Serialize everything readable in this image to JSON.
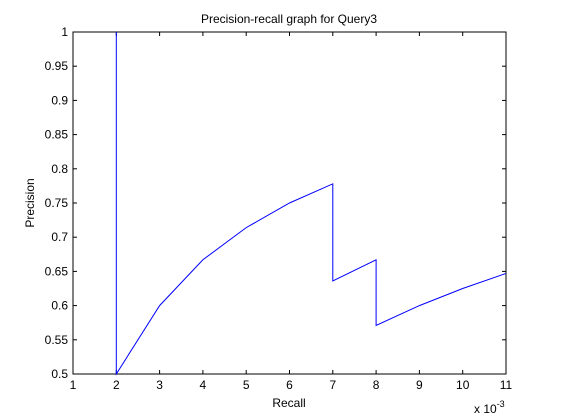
{
  "chart_data": {
    "type": "line",
    "title": "Precision-recall graph for Query3",
    "xlabel": "Recall",
    "ylabel": "Precision",
    "x_multiplier_label": "x 10",
    "x_multiplier_exponent": "-3",
    "xlim": [
      1,
      11
    ],
    "ylim": [
      0.5,
      1
    ],
    "xticks": [
      1,
      2,
      3,
      4,
      5,
      6,
      7,
      8,
      9,
      10,
      11
    ],
    "xtick_labels": [
      "1",
      "2",
      "3",
      "4",
      "5",
      "6",
      "7",
      "8",
      "9",
      "10",
      "11"
    ],
    "yticks": [
      0.5,
      0.55,
      0.6,
      0.65,
      0.7,
      0.75,
      0.8,
      0.85,
      0.9,
      0.95,
      1
    ],
    "ytick_labels": [
      "0.5",
      "0.55",
      "0.6",
      "0.65",
      "0.7",
      "0.75",
      "0.8",
      "0.85",
      "0.9",
      "0.95",
      "1"
    ],
    "grid": false,
    "line_color": "#0000ff",
    "series": [
      {
        "x": [
          2,
          2,
          3,
          4,
          5,
          6,
          7,
          7,
          8,
          8,
          9,
          10,
          11
        ],
        "y": [
          1.0,
          0.5,
          0.6,
          0.667,
          0.714,
          0.75,
          0.778,
          0.636,
          0.667,
          0.571,
          0.6,
          0.625,
          0.647
        ]
      }
    ]
  }
}
